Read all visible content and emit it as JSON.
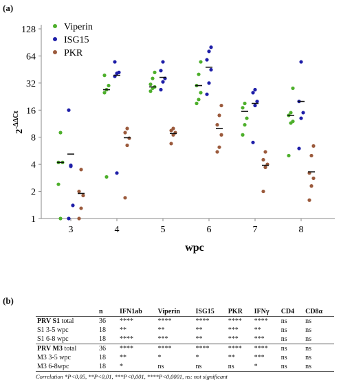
{
  "panel_a_label": "(a)",
  "panel_b_label": "(b)",
  "chart_data": {
    "type": "scatter",
    "xlabel": "wpc",
    "ylabel_base": "2",
    "ylabel_exp": "-ΔΔCt",
    "y_scale": "log2",
    "ylim": [
      1,
      128
    ],
    "yticks": [
      1,
      2,
      4,
      8,
      16,
      32,
      64,
      128
    ],
    "categories": [
      "3",
      "4",
      "5",
      "6",
      "7",
      "8"
    ],
    "legend_position": "top-left",
    "series": [
      {
        "name": "Viperin",
        "color": "#4daf2b",
        "points": [
          [
            4.2,
            9.0,
            4.2,
            2.4,
            1.0
          ],
          [
            25,
            27,
            30,
            39,
            2.9
          ],
          [
            26,
            28,
            29,
            31,
            36,
            42
          ],
          [
            19,
            21,
            25,
            30,
            40,
            55
          ],
          [
            8.5,
            11,
            13,
            17,
            19
          ],
          [
            5.0,
            11.5,
            12,
            14,
            15,
            28
          ]
        ],
        "means": [
          4.2,
          27,
          29,
          30,
          15.5,
          14
        ]
      },
      {
        "name": "ISG15",
        "color": "#1e1ea8",
        "points": [
          [
            16,
            3.9,
            1.4,
            1.0,
            3.8
          ],
          [
            38,
            41,
            42,
            55,
            3.2
          ],
          [
            27,
            33,
            36,
            44,
            55
          ],
          [
            24,
            32,
            45,
            58,
            72,
            80
          ],
          [
            7.0,
            18,
            20,
            25,
            27
          ],
          [
            6.0,
            13,
            15,
            20,
            55
          ]
        ],
        "means": [
          5.2,
          39,
          37,
          48,
          19,
          20
        ]
      },
      {
        "name": "PKR",
        "color": "#9b5a3c",
        "points": [
          [
            1.0,
            1.3,
            1.8,
            2.0,
            3.5
          ],
          [
            1.7,
            6.5,
            7.8,
            9.0,
            10
          ],
          [
            6.8,
            8.5,
            9.0,
            9.5,
            10
          ],
          [
            5.5,
            6.2,
            8.5,
            11,
            14,
            18
          ],
          [
            2.0,
            3.7,
            4.0,
            4.5,
            5.5
          ],
          [
            1.6,
            2.3,
            2.8,
            3.2,
            5.0,
            6.4
          ]
        ],
        "means": [
          1.9,
          7.9,
          8.8,
          10,
          3.9,
          3.3
        ]
      }
    ]
  },
  "table": {
    "headers": [
      "",
      "n",
      "IFN1ab",
      "Viperin",
      "ISG15",
      "PKR",
      "IFNγ",
      "CD4",
      "CD8α"
    ],
    "rows": [
      {
        "label_bold": "PRV S1",
        "label_rest": " total",
        "cells": [
          "36",
          "****",
          "****",
          "****",
          "****",
          "****",
          "ns",
          "ns"
        ]
      },
      {
        "label_bold": "",
        "label_rest": "S1 3-5 wpc",
        "cells": [
          "18",
          "**",
          "**",
          "**",
          "***",
          "**",
          "ns",
          "ns"
        ]
      },
      {
        "label_bold": "",
        "label_rest": "S1 6-8 wpc",
        "cells": [
          "18",
          "****",
          "***",
          "**",
          "***",
          "***",
          "ns",
          "ns"
        ]
      },
      {
        "label_bold": "PRV M3",
        "label_rest": " total",
        "cells": [
          "36",
          "****",
          "****",
          "****",
          "****",
          "****",
          "ns",
          "ns"
        ]
      },
      {
        "label_bold": "",
        "label_rest": "M3 3-5 wpc",
        "cells": [
          "18",
          "**",
          "*",
          "*",
          "**",
          "***",
          "ns",
          "ns"
        ]
      },
      {
        "label_bold": "",
        "label_rest": "M3 6-8wpc",
        "cells": [
          "18",
          "*",
          "ns",
          "ns",
          "ns",
          "*",
          "ns",
          "ns"
        ]
      }
    ],
    "footnote": "Correlation *P<0,05, **P<0,01, ***P<0,001, ****P<0,0001, ns: not significant"
  }
}
